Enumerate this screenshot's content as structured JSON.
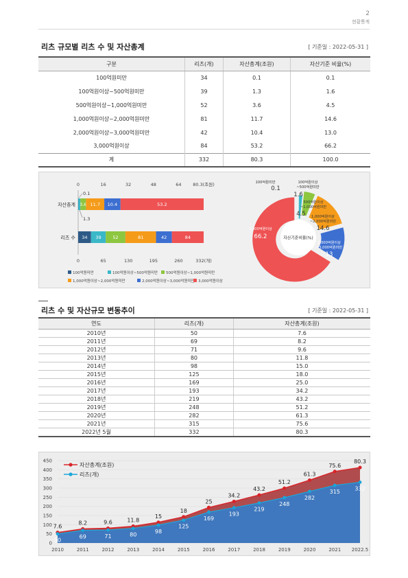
{
  "header": {
    "page_number": "2",
    "section": "현황통계"
  },
  "section1": {
    "title": "리츠 규모별 리츠 수 및 자산총계",
    "date": "[ 기준일 : 2022-05-31 ]",
    "columns": [
      "구분",
      "리츠(개)",
      "자산총계(조원)",
      "자산기준 비율(%)"
    ],
    "rows": [
      [
        "100억원미만",
        "34",
        "0.1",
        "0.1"
      ],
      [
        "100억원이상~500억원미만",
        "39",
        "1.3",
        "1.6"
      ],
      [
        "500억원이상~1,000억원미만",
        "52",
        "3.6",
        "4.5"
      ],
      [
        "1,000억원이상~2,000억원미만",
        "81",
        "11.7",
        "14.6"
      ],
      [
        "2,000억원이상~3,000억원미만",
        "42",
        "10.4",
        "13.0"
      ],
      [
        "3,000억원이상",
        "84",
        "53.2",
        "66.2"
      ]
    ],
    "total": [
      "계",
      "332",
      "80.3",
      "100.0"
    ]
  },
  "chart_data": [
    {
      "type": "bar",
      "orientation": "horizontal-stacked",
      "categories": [
        "자산총계",
        "리츠 수"
      ],
      "series": [
        {
          "name": "100억원미만",
          "color": "#2e5a87",
          "values": [
            0.1,
            34
          ]
        },
        {
          "name": "100억원이상~500억원미만",
          "color": "#3bb8c8",
          "values": [
            1.3,
            39
          ]
        },
        {
          "name": "500억원이상~1,000억원미만",
          "color": "#8dc63f",
          "values": [
            3.6,
            52
          ]
        },
        {
          "name": "1,000억원이상~2,000억원미만",
          "color": "#f59b1a",
          "values": [
            11.7,
            81
          ]
        },
        {
          "name": "2,000억원이상~3,000억원미만",
          "color": "#3d6fd1",
          "values": [
            10.4,
            42
          ]
        },
        {
          "name": "3,000억원이상",
          "color": "#ee5253",
          "values": [
            53.2,
            84
          ]
        }
      ],
      "top_axis": {
        "ticks": [
          "0",
          "16",
          "32",
          "48",
          "64",
          "80.3(조원)"
        ],
        "max": 80.3
      },
      "bottom_axis": {
        "ticks": [
          "0",
          "65",
          "130",
          "195",
          "260",
          "332(개)"
        ],
        "max": 332
      },
      "legend": "bottom"
    },
    {
      "type": "pie",
      "style": "donut",
      "title": "자산기준비율(%)",
      "slices": [
        {
          "label": "100억원미만",
          "value": 0.1,
          "color": "#2e5a87"
        },
        {
          "label": "100억원이상~500억원미만",
          "value": 1.6,
          "color": "#3bb8c8"
        },
        {
          "label": "500억원이상~1,000억원미만",
          "value": 4.5,
          "color": "#8dc63f"
        },
        {
          "label": "1,000억원이상~2,000억원미만",
          "value": 14.6,
          "color": "#f59b1a"
        },
        {
          "label": "2,000억원이상~3,000억원미만",
          "value": 13.0,
          "color": "#3d6fd1"
        },
        {
          "label": "3,000억원이상",
          "value": 66.2,
          "color": "#ee5253"
        }
      ]
    },
    {
      "type": "area",
      "x": [
        "2010",
        "2011",
        "2012",
        "2013",
        "2014",
        "2015",
        "2016",
        "2017",
        "2018",
        "2019",
        "2020",
        "2021",
        "2022.5"
      ],
      "series": [
        {
          "name": "자산총계(조원)",
          "color": "#d9252a",
          "values": [
            7.6,
            8.2,
            9.6,
            11.8,
            15,
            18,
            25,
            34.2,
            43.2,
            51.2,
            61.3,
            75.6,
            80.3
          ]
        },
        {
          "name": "리츠(개)",
          "color": "#1ba6d9",
          "values": [
            50,
            69,
            71,
            80,
            98,
            125,
            169,
            193,
            219,
            248,
            282,
            315,
            332
          ]
        }
      ],
      "y_ticks": [
        "0",
        "50",
        "100",
        "150",
        "200",
        "250",
        "300",
        "350",
        "400",
        "450"
      ],
      "ylim": [
        0,
        450
      ],
      "legend": "top-left"
    }
  ],
  "section2": {
    "title": "리츠 수 및 자산규모 변동추이",
    "date": "[ 기준일 : 2022-05-31 ]",
    "columns": [
      "연도",
      "리츠(개)",
      "자산총계(조원)"
    ],
    "rows": [
      [
        "2010년",
        "50",
        "7.6"
      ],
      [
        "2011년",
        "69",
        "8.2"
      ],
      [
        "2012년",
        "71",
        "9.6"
      ],
      [
        "2013년",
        "80",
        "11.8"
      ],
      [
        "2014년",
        "98",
        "15.0"
      ],
      [
        "2015년",
        "125",
        "18.0"
      ],
      [
        "2016년",
        "169",
        "25.0"
      ],
      [
        "2017년",
        "193",
        "34.2"
      ],
      [
        "2018년",
        "219",
        "43.2"
      ],
      [
        "2019년",
        "248",
        "51.2"
      ],
      [
        "2020년",
        "282",
        "61.3"
      ],
      [
        "2021년",
        "315",
        "75.6"
      ],
      [
        "2022년 5월",
        "332",
        "80.3"
      ]
    ]
  }
}
